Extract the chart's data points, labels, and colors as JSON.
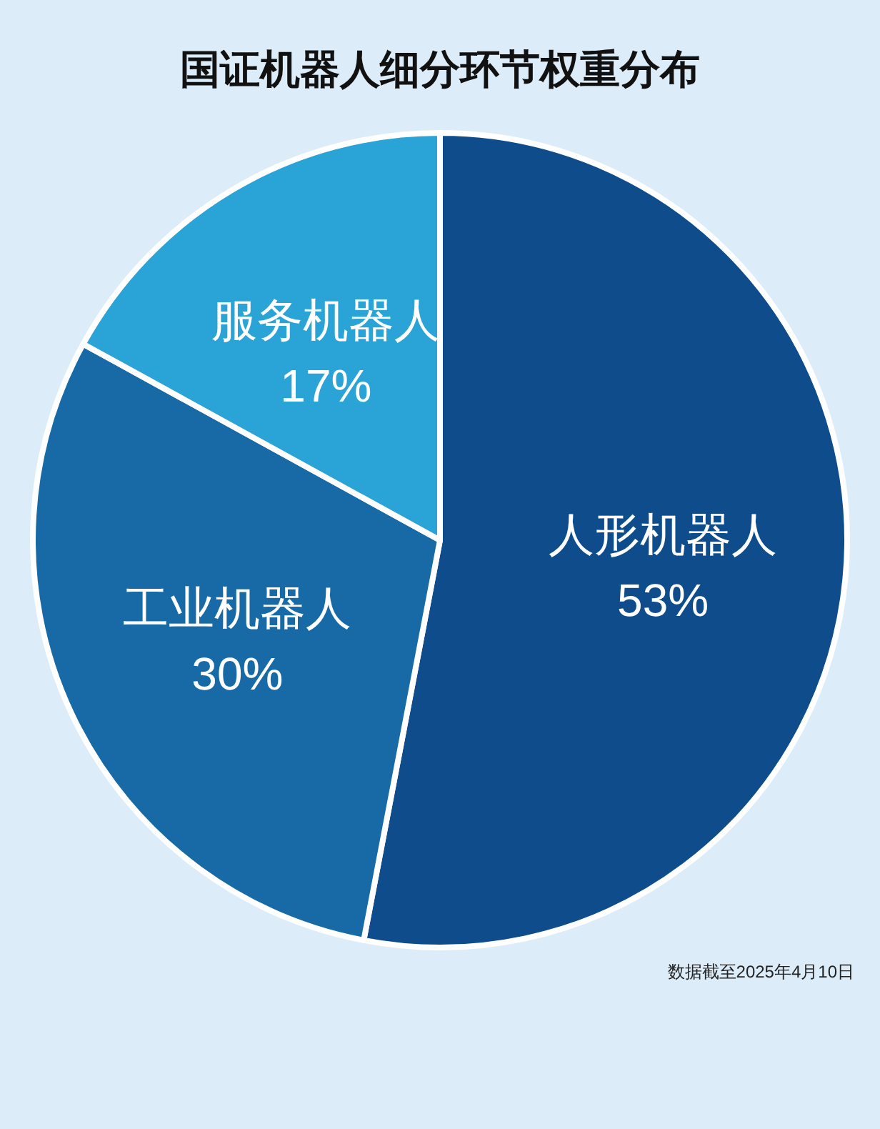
{
  "chart_data": {
    "type": "pie",
    "title": "国证机器人细分环节权重分布",
    "categories": [
      "人形机器人",
      "工业机器人",
      "服务机器人"
    ],
    "values": [
      53,
      30,
      17
    ],
    "colors": [
      "#0f4c8c",
      "#176aa6",
      "#2aa3d6"
    ],
    "value_labels": [
      "53%",
      "30%",
      "17%"
    ],
    "annotations": [
      "数据截至2025年4月10日"
    ]
  }
}
